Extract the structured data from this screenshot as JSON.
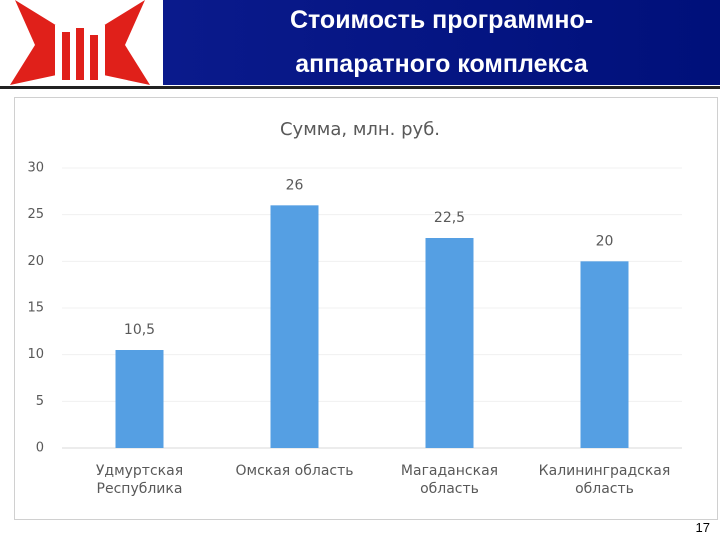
{
  "slide": {
    "title_lines": [
      "Стоимость программно-",
      "аппаратного комплекса"
    ],
    "page_number": 17
  },
  "chart_data": {
    "type": "bar",
    "title": "Сумма, млн. руб.",
    "categories": [
      "Удмуртская Республика",
      "Омская область",
      "Магаданская область",
      "Калининградская область"
    ],
    "values": [
      10.5,
      26,
      22.5,
      20
    ],
    "value_labels": [
      "10,5",
      "26",
      "22,5",
      "20"
    ],
    "color": "#559fe3",
    "ylim": [
      0,
      30
    ],
    "yticks": [
      0,
      5,
      10,
      15,
      20,
      25,
      30
    ],
    "grid": true
  }
}
